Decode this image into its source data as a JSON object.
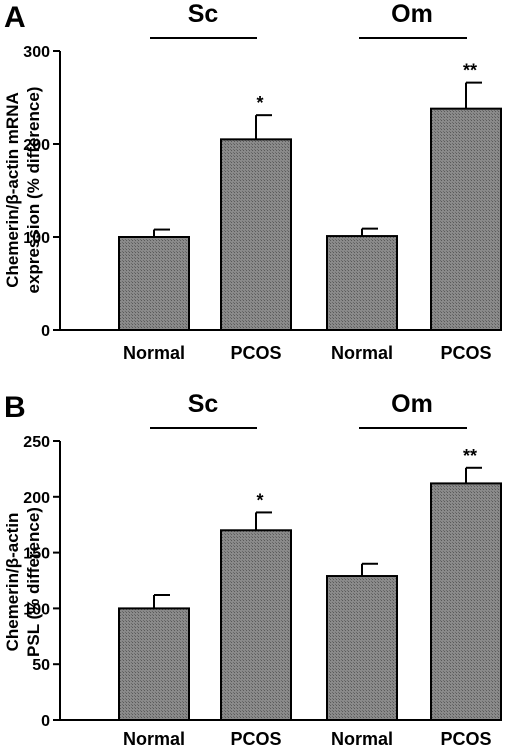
{
  "chart_data": [
    {
      "type": "bar",
      "panel_label": "A",
      "group_labels": [
        "Sc",
        "Om"
      ],
      "categories": [
        "Normal",
        "PCOS",
        "Normal",
        "PCOS"
      ],
      "values": [
        100,
        205,
        101,
        238
      ],
      "errors": [
        8,
        26,
        8,
        28
      ],
      "significance": [
        "",
        "*",
        "",
        "**"
      ],
      "ylabel_lines": [
        "Chemerin/β-actin mRNA",
        "expression (% difference)"
      ],
      "ylim": [
        0,
        300
      ],
      "yticks": [
        0,
        100,
        200,
        300
      ],
      "ytick_labels": [
        "0",
        "100",
        "200",
        "300"
      ],
      "bar_color": "#7a7a7a",
      "grid": false
    },
    {
      "type": "bar",
      "panel_label": "B",
      "group_labels": [
        "Sc",
        "Om"
      ],
      "categories": [
        "Normal",
        "PCOS",
        "Normal",
        "PCOS"
      ],
      "values": [
        100,
        170,
        129,
        212
      ],
      "errors": [
        12,
        16,
        11,
        14
      ],
      "significance": [
        "",
        "*",
        "",
        "**"
      ],
      "ylabel_lines": [
        "Chemerin/β-actin",
        "PSL (% difference)"
      ],
      "ylim": [
        0,
        250
      ],
      "yticks": [
        0,
        50,
        100,
        150,
        200,
        250
      ],
      "ytick_labels": [
        "0",
        "50",
        "100",
        "150",
        "200",
        "250"
      ],
      "bar_color": "#7a7a7a",
      "grid": false
    }
  ]
}
